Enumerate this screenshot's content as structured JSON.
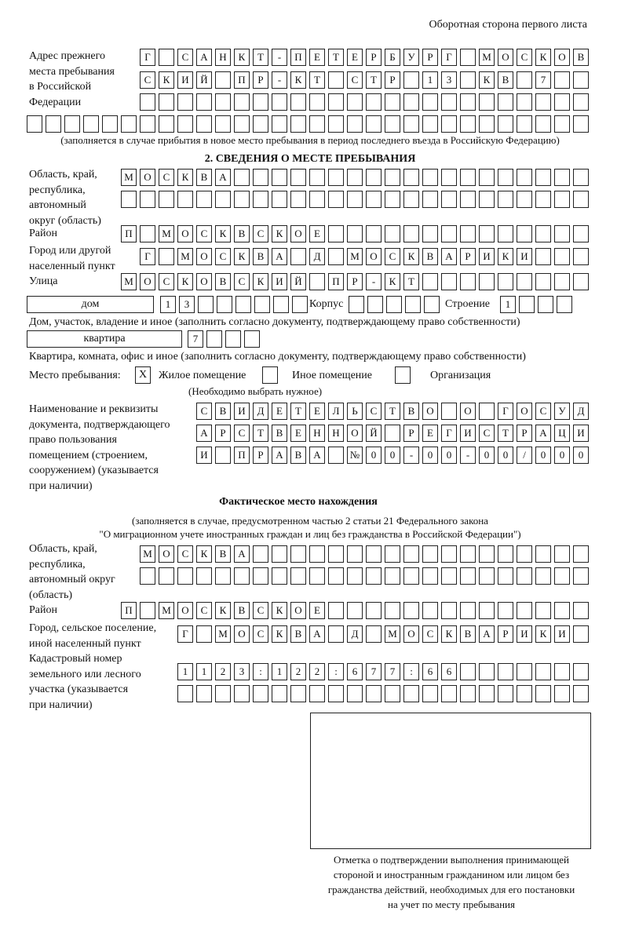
{
  "header": "Оборотная сторона первого листа",
  "prev_address": {
    "label": [
      "Адрес прежнего",
      "места пребывания",
      "в Российской",
      "Федерации"
    ],
    "rows": [
      "Г САНКТ-ПЕТЕРБУРГ МОСКОВ",
      "СКИЙ ПР-КТ СТР 13 КВ 7",
      "",
      ""
    ],
    "note": "(заполняется в случае прибытия в новое место пребывания в период последнего въезда в Российскую Федерацию)"
  },
  "section2": {
    "title": "2. СВЕДЕНИЯ О МЕСТЕ ПРЕБЫВАНИЯ",
    "region_label": [
      "Область, край,",
      "республика,",
      "автономный",
      "округ (область)"
    ],
    "region_rows": [
      "МОСКВА",
      ""
    ],
    "district_label": "Район",
    "district": "П МОСКВСКОЕ",
    "city_label": [
      "Город или другой",
      "населенный пункт"
    ],
    "city": "Г МОСКВА Д МОСКВАРИКИ",
    "street_label": "Улица",
    "street": "МОСКОВСКИЙ ПР-КТ",
    "house_type": "дом",
    "house": "13",
    "korpus_label": "Корпус",
    "korpus": "",
    "building_label": "Строение",
    "building": "1",
    "house_caption": "Дом, участок, владение и иное (заполнить согласно документу, подтверждающему право собственности)",
    "flat_type": "квартира",
    "flat": "7",
    "flat_caption": "Квартира, комната, офис и иное (заполнить согласно документу, подтверждающему право собственности)",
    "stay_label": "Место пребывания:",
    "stay_options": [
      {
        "label": "Жилое помещение",
        "mark": "X"
      },
      {
        "label": "Иное помещение",
        "mark": ""
      },
      {
        "label": "Организация",
        "mark": ""
      }
    ],
    "stay_note": "(Необходимо выбрать нужное)",
    "doc_label": [
      "Наименование и реквизиты",
      "документа, подтверждающего",
      "право пользования",
      "помещением (строением,",
      "сооружением) (указывается",
      "при наличии)"
    ],
    "doc_rows": [
      "СВИДЕТЕЛЬСТВО О ГОСУД",
      "АРСТВЕННОЙ РЕГИСТРАЦИ",
      "И ПРАВА №00-00-00/000"
    ]
  },
  "actual": {
    "title": "Фактическое место нахождения",
    "note1": "(заполняется в случае, предусмотренном частью 2 статьи 21 Федерального закона",
    "note2": "\"О миграционном учете иностранных граждан и лиц без гражданства в Российской Федерации\")",
    "region_label": [
      "Область, край,",
      "республика,",
      "автономный округ",
      "(область)"
    ],
    "region_rows": [
      "МОСКВА",
      ""
    ],
    "district_label": "Район",
    "district": "П МОСКВСКОЕ",
    "city_label": [
      "Город, сельское поселение,",
      "иной населенный пункт"
    ],
    "city": "Г МОСКВА Д МОСКВАРИКИ",
    "cadastre_label": [
      "Кадастровый номер",
      "земельного или лесного",
      "участка (указывается",
      "при наличии)"
    ],
    "cadastre_rows": [
      "1123:122:677:66",
      ""
    ]
  },
  "confirm_caption": [
    "Отметка о подтверждении выполнения принимающей",
    "стороной и иностранным гражданином или лицом без",
    "гражданства действий, необходимых для его постановки",
    "на учет по месту пребывания"
  ]
}
